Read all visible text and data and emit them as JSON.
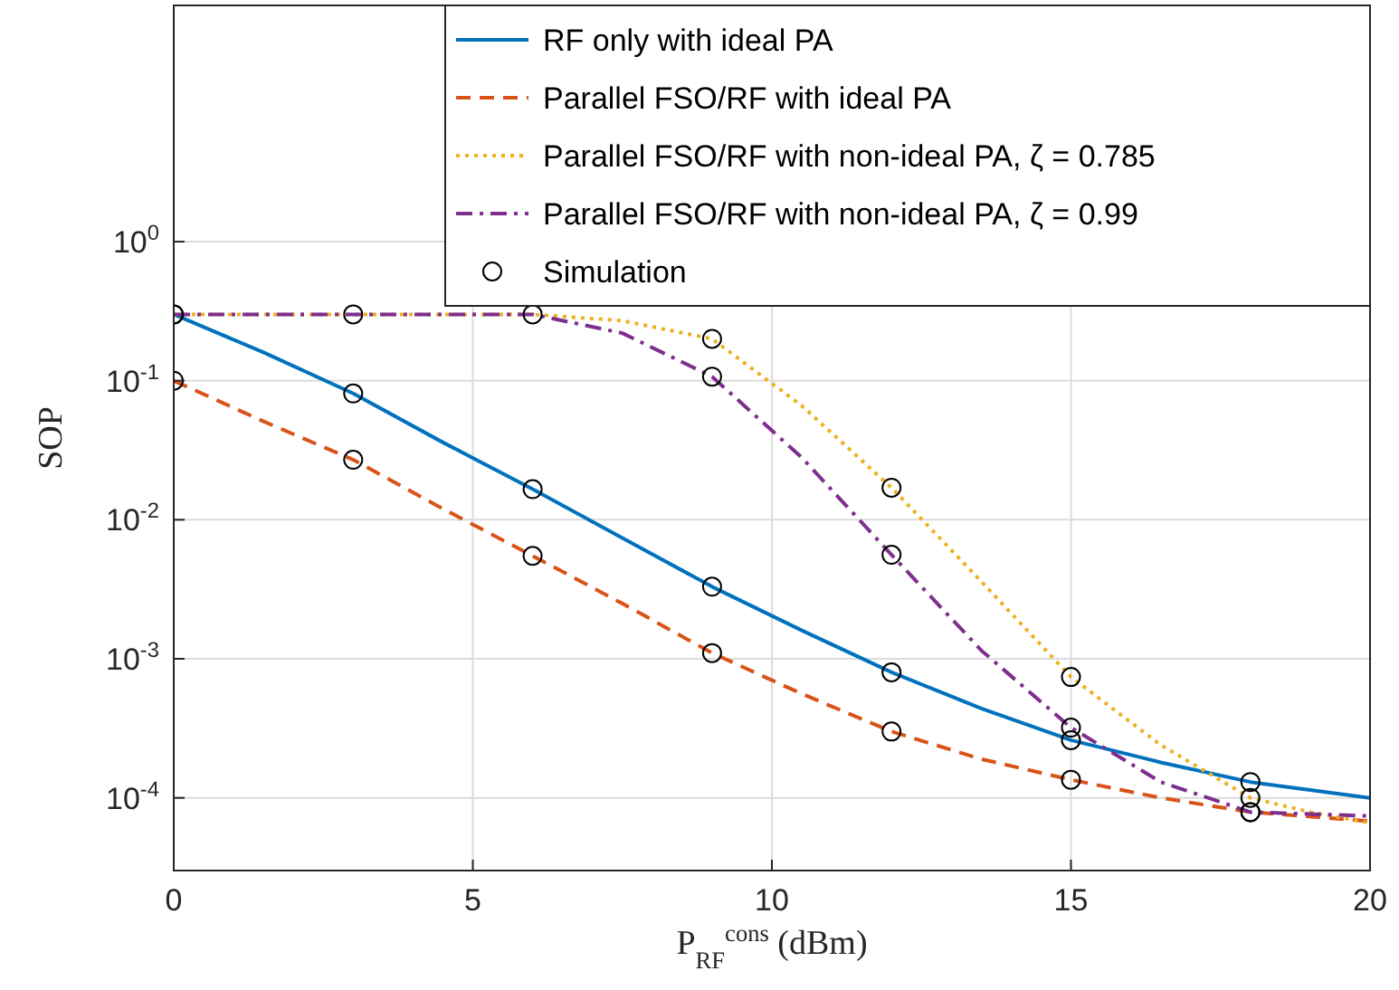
{
  "chart_data": {
    "type": "line",
    "xlabel": "P$_{RF}$$^{cons}$ (dBm)",
    "ylabel": "SOP",
    "log": "y",
    "grid": true,
    "legend": "top right",
    "xlim": [
      0,
      20
    ],
    "xticks": [
      0,
      5,
      10,
      15,
      20
    ],
    "ylim": [
      3e-05,
      50
    ],
    "yticks": [
      {
        "value": 0.0001,
        "label": "10$^{-4}$"
      },
      {
        "value": 0.001,
        "label": "10$^{-3}$"
      },
      {
        "value": 0.01,
        "label": "10$^{-2}$"
      },
      {
        "value": 0.1,
        "label": "10$^{-1}$"
      },
      {
        "value": 1,
        "label": "10$^{0}$"
      }
    ],
    "series": [
      {
        "name": "RF only with ideal PA",
        "color": "#0072bd",
        "line_style": "solid",
        "x": [
          0,
          1.5,
          3,
          4.5,
          6,
          7.5,
          9,
          10.5,
          12,
          13.5,
          15,
          16.5,
          18,
          20
        ],
        "values": [
          0.3,
          0.16,
          0.081,
          0.036,
          0.0166,
          0.0074,
          0.0033,
          0.0016,
          0.0008,
          0.00044,
          0.00026,
          0.00018,
          0.00013,
          0.0001
        ]
      },
      {
        "name": "Parallel FSO/RF with ideal PA",
        "color": "#d95319",
        "line_style": "dashed",
        "x": [
          0,
          1.5,
          3,
          4.5,
          6,
          7.5,
          9,
          10.5,
          12,
          13.5,
          15,
          16.5,
          18,
          20
        ],
        "values": [
          0.1,
          0.051,
          0.027,
          0.012,
          0.0055,
          0.0025,
          0.0011,
          0.00056,
          0.0003,
          0.00019,
          0.000135,
          0.0001,
          7.9e-05,
          6.8e-05
        ]
      },
      {
        "name": "Parallel FSO/RF with non-ideal PA, ζ = 0.785",
        "color": "#edb120",
        "line_style": "dotted",
        "x": [
          0,
          3,
          6,
          7.5,
          9,
          10.5,
          12,
          13.5,
          15,
          16.5,
          18,
          19,
          20
        ],
        "values": [
          0.3,
          0.3,
          0.3,
          0.27,
          0.2,
          0.066,
          0.017,
          0.0036,
          0.00074,
          0.00024,
          0.0001,
          7.9e-05,
          6.6e-05
        ]
      },
      {
        "name": "Parallel FSO/RF with non-ideal PA, ζ = 0.99",
        "color": "#7e2f8e",
        "line_style": "dashdot",
        "x": [
          0,
          3,
          6,
          7.5,
          9,
          10.5,
          12,
          13.5,
          15,
          16.5,
          18,
          20
        ],
        "values": [
          0.3,
          0.3,
          0.3,
          0.22,
          0.107,
          0.028,
          0.0056,
          0.00115,
          0.00032,
          0.00013,
          7.9e-05,
          7.4e-05
        ]
      },
      {
        "name": "Simulation",
        "type": "scatter",
        "color": "#000000",
        "marker": "circle",
        "x": [
          0,
          0,
          0,
          3,
          3,
          3,
          6,
          6,
          6,
          9,
          9,
          9,
          9,
          12,
          12,
          12,
          12,
          15,
          15,
          15,
          15,
          18,
          18,
          18,
          18
        ],
        "values": [
          0.3,
          0.1,
          0.3,
          0.081,
          0.027,
          0.3,
          0.0166,
          0.0055,
          0.3,
          0.0033,
          0.0011,
          0.2,
          0.107,
          0.0008,
          0.0003,
          0.017,
          0.0056,
          0.00026,
          0.000135,
          0.00074,
          0.00032,
          0.00013,
          7.9e-05,
          0.0001,
          7.9e-05
        ]
      }
    ]
  }
}
